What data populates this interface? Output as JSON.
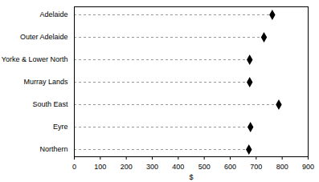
{
  "chart_data": {
    "type": "dot",
    "orientation": "horizontal",
    "categories": [
      "Adelaide",
      "Outer Adelaide",
      "Yorke & Lower North",
      "Murray Lands",
      "South East",
      "Eyre",
      "Northern"
    ],
    "values": [
      762,
      730,
      675,
      675,
      787,
      678,
      672
    ],
    "xlabel": "$",
    "xlim": [
      0,
      900
    ],
    "xticks": [
      0,
      100,
      200,
      300,
      400,
      500,
      600,
      700,
      800,
      900
    ],
    "color": "#000000",
    "marker": "diamond",
    "line_style": "dashed"
  }
}
